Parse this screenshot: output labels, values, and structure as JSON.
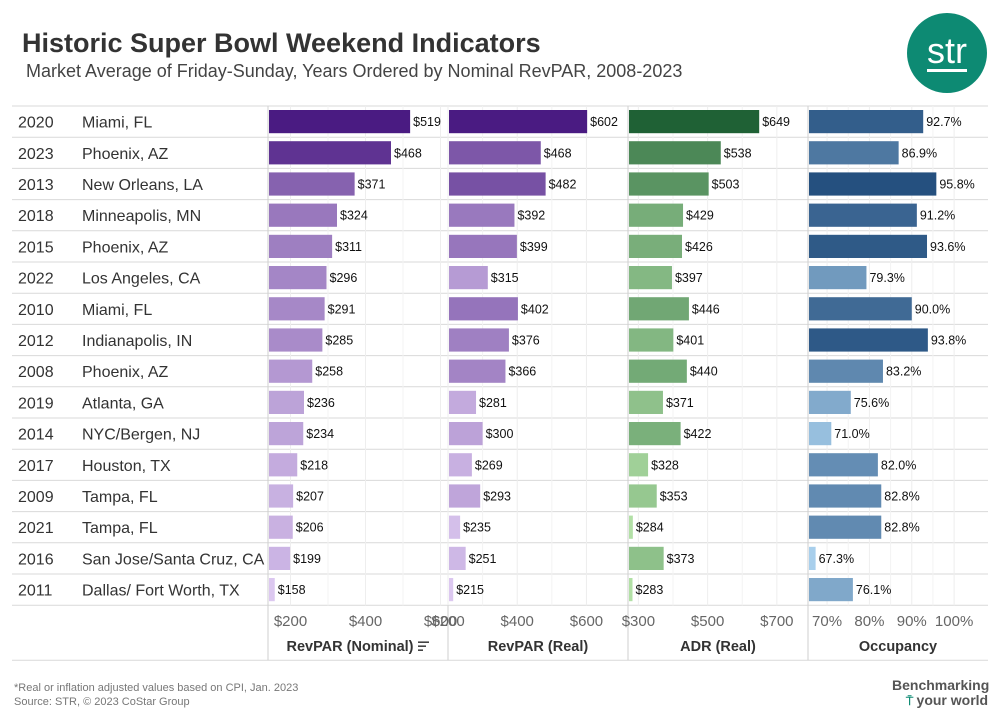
{
  "title": "Historic Super Bowl Weekend Indicators",
  "subtitle": "Market Average of Friday-Sunday, Years Ordered by Nominal RevPAR, 2008-2023",
  "logo": {
    "text": "str",
    "color": "#0d8a73"
  },
  "footnote": {
    "line1": "*Real or inflation adjusted values based on CPI, Jan. 2023",
    "line2": "Source: STR, © 2023 CoStar Group"
  },
  "tagline": {
    "line1": "Benchmarking",
    "line2": "your world"
  },
  "chart_data": {
    "type": "bar",
    "orientation": "horizontal",
    "rows": [
      {
        "year": "2020",
        "market": "Miami, FL"
      },
      {
        "year": "2023",
        "market": "Phoenix, AZ"
      },
      {
        "year": "2013",
        "market": "New Orleans, LA"
      },
      {
        "year": "2018",
        "market": "Minneapolis, MN"
      },
      {
        "year": "2015",
        "market": "Phoenix, AZ"
      },
      {
        "year": "2022",
        "market": "Los Angeles, CA"
      },
      {
        "year": "2010",
        "market": "Miami, FL"
      },
      {
        "year": "2012",
        "market": "Indianapolis, IN"
      },
      {
        "year": "2008",
        "market": "Phoenix, AZ"
      },
      {
        "year": "2019",
        "market": "Atlanta, GA"
      },
      {
        "year": "2014",
        "market": "NYC/Bergen, NJ"
      },
      {
        "year": "2017",
        "market": "Houston, TX"
      },
      {
        "year": "2009",
        "market": "Tampa, FL"
      },
      {
        "year": "2021",
        "market": "Tampa, FL"
      },
      {
        "year": "2016",
        "market": "San Jose/Santa Cruz, CA"
      },
      {
        "year": "2011",
        "market": "Dallas/ Fort Worth, TX"
      }
    ],
    "panels": [
      {
        "label": "RevPAR (Nominal)",
        "sort_indicator": true,
        "values": [
          519,
          468,
          371,
          324,
          311,
          296,
          291,
          285,
          258,
          236,
          234,
          218,
          207,
          206,
          199,
          158
        ],
        "value_labels": [
          "$519",
          "$468",
          "$371",
          "$324",
          "$311",
          "$296",
          "$291",
          "$285",
          "$258",
          "$236",
          "$234",
          "$218",
          "$207",
          "$206",
          "$199",
          "$158"
        ],
        "xlim": [
          140,
          620
        ],
        "ticks": [
          200,
          400,
          600
        ],
        "tick_labels": [
          "$200",
          "$400",
          "$600"
        ],
        "color_range": [
          "#dcc8f0",
          "#4a1b82"
        ]
      },
      {
        "label": "RevPAR (Real)",
        "sort_indicator": false,
        "values": [
          602,
          468,
          482,
          392,
          399,
          315,
          402,
          376,
          366,
          281,
          300,
          269,
          293,
          235,
          251,
          215
        ],
        "value_labels": [
          "$602",
          "$468",
          "$482",
          "$392",
          "$399",
          "$315",
          "$402",
          "$376",
          "$366",
          "$281",
          "$300",
          "$269",
          "$293",
          "$235",
          "$251",
          "$215"
        ],
        "xlim": [
          200,
          720
        ],
        "ticks": [
          200,
          400,
          600
        ],
        "tick_labels": [
          "$200",
          "$400",
          "$600"
        ],
        "color_range": [
          "#dcc8f0",
          "#4a1b82"
        ]
      },
      {
        "label": "ADR (Real)",
        "sort_indicator": false,
        "values": [
          649,
          538,
          503,
          429,
          426,
          397,
          446,
          401,
          440,
          371,
          422,
          328,
          353,
          284,
          373,
          283
        ],
        "value_labels": [
          "$649",
          "$538",
          "$503",
          "$429",
          "$426",
          "$397",
          "$446",
          "$401",
          "$440",
          "$371",
          "$422",
          "$328",
          "$353",
          "$284",
          "$373",
          "$283"
        ],
        "xlim": [
          270,
          790
        ],
        "ticks": [
          300,
          500,
          700
        ],
        "tick_labels": [
          "$300",
          "$500",
          "$700"
        ],
        "color_range": [
          "#b2e0a6",
          "#1f6135"
        ]
      },
      {
        "label": "Occupancy",
        "sort_indicator": false,
        "values": [
          92.7,
          86.9,
          95.8,
          91.2,
          93.6,
          79.3,
          90.0,
          93.8,
          83.2,
          75.6,
          71.0,
          82.0,
          82.8,
          82.8,
          67.3,
          76.1
        ],
        "value_labels": [
          "92.7%",
          "86.9%",
          "95.8%",
          "91.2%",
          "93.6%",
          "79.3%",
          "90.0%",
          "93.8%",
          "83.2%",
          "75.6%",
          "71.0%",
          "82.0%",
          "82.8%",
          "82.8%",
          "67.3%",
          "76.1%"
        ],
        "xlim": [
          65.5,
          108
        ],
        "ticks": [
          70,
          80,
          90,
          100
        ],
        "tick_labels": [
          "70%",
          "80%",
          "90%",
          "100%"
        ],
        "color_range": [
          "#a8cfec",
          "#25507f"
        ]
      }
    ]
  }
}
